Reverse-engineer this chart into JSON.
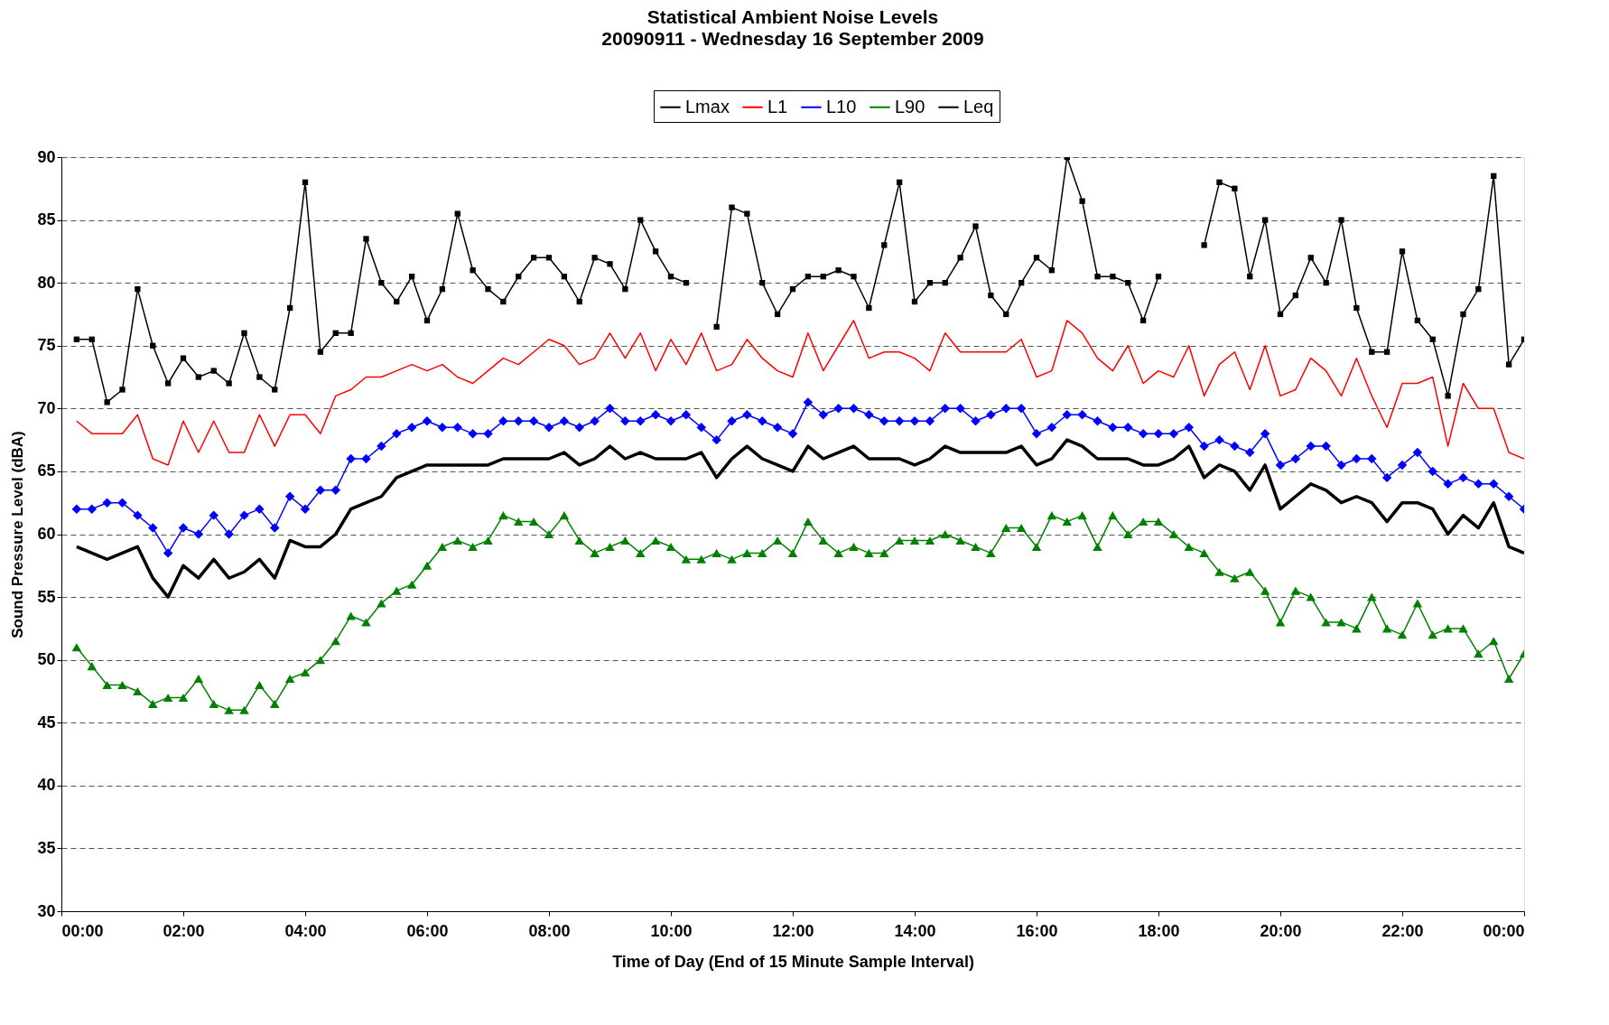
{
  "chart_data": {
    "type": "line",
    "title": "Statistical Ambient Noise Levels",
    "subtitle": "20090911 - Wednesday 16 September 2009",
    "xlabel": "Time of Day (End of 15 Minute Sample Interval)",
    "ylabel": "Sound Pressure Level (dBA)",
    "x": [
      0.25,
      0.5,
      0.75,
      1,
      1.25,
      1.5,
      1.75,
      2,
      2.25,
      2.5,
      2.75,
      3,
      3.25,
      3.5,
      3.75,
      4,
      4.25,
      4.5,
      4.75,
      5,
      5.25,
      5.5,
      5.75,
      6,
      6.25,
      6.5,
      6.75,
      7,
      7.25,
      7.5,
      7.75,
      8,
      8.25,
      8.5,
      8.75,
      9,
      9.25,
      9.5,
      9.75,
      10,
      10.25,
      10.5,
      10.75,
      11,
      11.25,
      11.5,
      11.75,
      12,
      12.25,
      12.5,
      12.75,
      13,
      13.25,
      13.5,
      13.75,
      14,
      14.25,
      14.5,
      14.75,
      15,
      15.25,
      15.5,
      15.75,
      16,
      16.25,
      16.5,
      16.75,
      17,
      17.25,
      17.5,
      17.75,
      18,
      18.25,
      18.5,
      18.75,
      19,
      19.25,
      19.5,
      19.75,
      20,
      20.25,
      20.5,
      20.75,
      21,
      21.25,
      21.5,
      21.75,
      22,
      22.25,
      22.5,
      22.75,
      23,
      23.25,
      23.5,
      23.75,
      24
    ],
    "series": [
      {
        "name": "Lmax",
        "color": "#000000",
        "marker": "square",
        "values": [
          75.5,
          75.5,
          70.5,
          71.5,
          79.5,
          75,
          72,
          74,
          72.5,
          73,
          72,
          76,
          72.5,
          71.5,
          78,
          88,
          74.5,
          76,
          76,
          83.5,
          80,
          78.5,
          80.5,
          77,
          79.5,
          85.5,
          81,
          79.5,
          78.5,
          80.5,
          82,
          82,
          80.5,
          78.5,
          82,
          81.5,
          79.5,
          85,
          82.5,
          80.5,
          80,
          null,
          76.5,
          86,
          85.5,
          80,
          77.5,
          79.5,
          80.5,
          80.5,
          81,
          80.5,
          78,
          83,
          88,
          78.5,
          80,
          80,
          82,
          84.5,
          79,
          77.5,
          80,
          82,
          81,
          90,
          86.5,
          80.5,
          80.5,
          80,
          77,
          80.5,
          null,
          null,
          83,
          88,
          87.5,
          80.5,
          85,
          77.5,
          79,
          82,
          80,
          85,
          78,
          74.5,
          74.5,
          82.5,
          77,
          75.5,
          71,
          77.5,
          79.5,
          88.5,
          73.5,
          75.5
        ]
      },
      {
        "name": "L1",
        "color": "#ff0000",
        "marker": "none",
        "values": [
          69,
          68,
          68,
          68,
          69.5,
          66,
          65.5,
          69,
          66.5,
          69,
          66.5,
          66.5,
          69.5,
          67,
          69.5,
          69.5,
          68,
          71,
          71.5,
          72.5,
          72.5,
          73,
          73.5,
          73,
          73.5,
          72.5,
          72,
          73,
          74,
          73.5,
          74.5,
          75.5,
          75,
          73.5,
          74,
          76,
          74,
          76,
          73,
          75.5,
          73.5,
          76,
          73,
          73.5,
          75.5,
          74,
          73,
          72.5,
          76,
          73,
          75,
          77,
          74,
          74.5,
          74.5,
          74,
          73,
          76,
          74.5,
          74.5,
          74.5,
          74.5,
          75.5,
          72.5,
          73,
          77,
          76,
          74,
          73,
          75,
          72,
          73,
          72.5,
          75,
          71,
          73.5,
          74.5,
          71.5,
          75,
          71,
          71.5,
          74,
          73,
          71,
          74,
          71,
          68.5,
          72,
          72,
          72.5,
          67,
          72,
          70,
          70,
          66.5,
          66
        ]
      },
      {
        "name": "L10",
        "color": "#0000ff",
        "marker": "diamond",
        "values": [
          62,
          62,
          62.5,
          62.5,
          61.5,
          60.5,
          58.5,
          60.5,
          60,
          61.5,
          60,
          61.5,
          62,
          60.5,
          63,
          62,
          63.5,
          63.5,
          66,
          66,
          67,
          68,
          68.5,
          69,
          68.5,
          68.5,
          68,
          68,
          69,
          69,
          69,
          68.5,
          69,
          68.5,
          69,
          70,
          69,
          69,
          69.5,
          69,
          69.5,
          68.5,
          67.5,
          69,
          69.5,
          69,
          68.5,
          68,
          70.5,
          69.5,
          70,
          70,
          69.5,
          69,
          69,
          69,
          69,
          70,
          70,
          69,
          69.5,
          70,
          70,
          68,
          68.5,
          69.5,
          69.5,
          69,
          68.5,
          68.5,
          68,
          68,
          68,
          68.5,
          67,
          67.5,
          67,
          66.5,
          68,
          65.5,
          66,
          67,
          67,
          65.5,
          66,
          66,
          64.5,
          65.5,
          66.5,
          65,
          64,
          64.5,
          64,
          64,
          63,
          62
        ]
      },
      {
        "name": "L90",
        "color": "#008000",
        "marker": "triangle",
        "values": [
          51,
          49.5,
          48,
          48,
          47.5,
          46.5,
          47,
          47,
          48.5,
          46.5,
          46,
          46,
          48,
          46.5,
          48.5,
          49,
          50,
          51.5,
          53.5,
          53,
          54.5,
          55.5,
          56,
          57.5,
          59,
          59.5,
          59,
          59.5,
          61.5,
          61,
          61,
          60,
          61.5,
          59.5,
          58.5,
          59,
          59.5,
          58.5,
          59.5,
          59,
          58,
          58,
          58.5,
          58,
          58.5,
          58.5,
          59.5,
          58.5,
          61,
          59.5,
          58.5,
          59,
          58.5,
          58.5,
          59.5,
          59.5,
          59.5,
          60,
          59.5,
          59,
          58.5,
          60.5,
          60.5,
          59,
          61.5,
          61,
          61.5,
          59,
          61.5,
          60,
          61,
          61,
          60,
          59,
          58.5,
          57,
          56.5,
          57,
          55.5,
          53,
          55.5,
          55,
          53,
          53,
          52.5,
          55,
          52.5,
          52,
          54.5,
          52,
          52.5,
          52.5,
          50.5,
          51.5,
          48.5,
          50.5
        ]
      },
      {
        "name": "Leq",
        "color": "#000000",
        "marker": "none",
        "values": [
          59,
          58.5,
          58,
          58.5,
          59,
          56.5,
          55,
          57.5,
          56.5,
          58,
          56.5,
          57,
          58,
          56.5,
          59.5,
          59,
          59,
          60,
          62,
          62.5,
          63,
          64.5,
          65,
          65.5,
          65.5,
          65.5,
          65.5,
          65.5,
          66,
          66,
          66,
          66,
          66.5,
          65.5,
          66,
          67,
          66,
          66.5,
          66,
          66,
          66,
          66.5,
          64.5,
          66,
          67,
          66,
          65.5,
          65,
          67,
          66,
          66.5,
          67,
          66,
          66,
          66,
          65.5,
          66,
          67,
          66.5,
          66.5,
          66.5,
          66.5,
          67,
          65.5,
          66,
          67.5,
          67,
          66,
          66,
          66,
          65.5,
          65.5,
          66,
          67,
          64.5,
          65.5,
          65,
          63.5,
          65.5,
          62,
          63,
          64,
          63.5,
          62.5,
          63,
          62.5,
          61,
          62.5,
          62.5,
          62,
          60,
          61.5,
          60.5,
          62.5,
          59,
          58.5
        ]
      }
    ],
    "xlim": [
      0,
      24
    ],
    "ylim": [
      30,
      90
    ],
    "xticks": [
      {
        "value": 0,
        "label": "00:00"
      },
      {
        "value": 2,
        "label": "02:00"
      },
      {
        "value": 4,
        "label": "04:00"
      },
      {
        "value": 6,
        "label": "06:00"
      },
      {
        "value": 8,
        "label": "08:00"
      },
      {
        "value": 10,
        "label": "10:00"
      },
      {
        "value": 12,
        "label": "12:00"
      },
      {
        "value": 14,
        "label": "14:00"
      },
      {
        "value": 16,
        "label": "16:00"
      },
      {
        "value": 18,
        "label": "18:00"
      },
      {
        "value": 20,
        "label": "20:00"
      },
      {
        "value": 22,
        "label": "22:00"
      },
      {
        "value": 24,
        "label": "00:00"
      }
    ],
    "yticks": [
      30,
      35,
      40,
      45,
      50,
      55,
      60,
      65,
      70,
      75,
      80,
      85,
      90
    ],
    "grid": "y",
    "legend": "top",
    "line_style": "solid"
  }
}
